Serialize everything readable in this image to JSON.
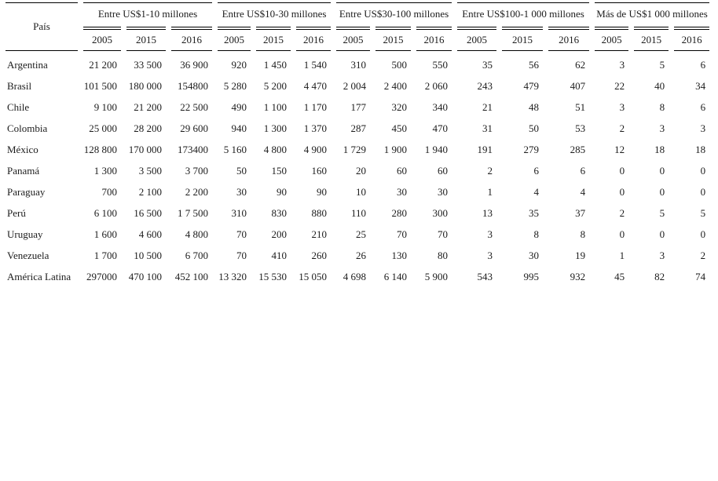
{
  "table": {
    "country_header": "País",
    "years": [
      "2005",
      "2015",
      "2016"
    ],
    "groups": [
      {
        "label": "Entre US$1-10 millones"
      },
      {
        "label": "Entre US$10-30 millones"
      },
      {
        "label": "Entre US$30-100 millones"
      },
      {
        "label": "Entre US$100-1 000 millones"
      },
      {
        "label": "Más de US$1 000 millones"
      }
    ],
    "rows": [
      {
        "country": "Argentina",
        "values": [
          "21 200",
          "33 500",
          "36 900",
          "920",
          "1 450",
          "1 540",
          "310",
          "500",
          "550",
          "35",
          "56",
          "62",
          "3",
          "5",
          "6"
        ]
      },
      {
        "country": "Brasil",
        "values": [
          "101 500",
          "180 000",
          "154800",
          "5 280",
          "5 200",
          "4 470",
          "2 004",
          "2 400",
          "2 060",
          "243",
          "479",
          "407",
          "22",
          "40",
          "34"
        ]
      },
      {
        "country": "Chile",
        "values": [
          "9 100",
          "21 200",
          "22 500",
          "490",
          "1 100",
          "1 170",
          "177",
          "320",
          "340",
          "21",
          "48",
          "51",
          "3",
          "8",
          "6"
        ]
      },
      {
        "country": "Colombia",
        "values": [
          "25 000",
          "28 200",
          "29 600",
          "940",
          "1 300",
          "1 370",
          "287",
          "450",
          "470",
          "31",
          "50",
          "53",
          "2",
          "3",
          "3"
        ]
      },
      {
        "country": "México",
        "values": [
          "128 800",
          "170 000",
          "173400",
          "5 160",
          "4 800",
          "4 900",
          "1 729",
          "1 900",
          "1 940",
          "191",
          "279",
          "285",
          "12",
          "18",
          "18"
        ]
      },
      {
        "country": "Panamá",
        "values": [
          "1 300",
          "3 500",
          "3 700",
          "50",
          "150",
          "160",
          "20",
          "60",
          "60",
          "2",
          "6",
          "6",
          "0",
          "0",
          "0"
        ]
      },
      {
        "country": "Paraguay",
        "values": [
          "700",
          "2 100",
          "2 200",
          "30",
          "90",
          "90",
          "10",
          "30",
          "30",
          "1",
          "4",
          "4",
          "0",
          "0",
          "0"
        ]
      },
      {
        "country": "Perú",
        "values": [
          "6 100",
          "16 500",
          "1 7 500",
          "310",
          "830",
          "880",
          "110",
          "280",
          "300",
          "13",
          "35",
          "37",
          "2",
          "5",
          "5"
        ]
      },
      {
        "country": "Uruguay",
        "values": [
          "1 600",
          "4 600",
          "4 800",
          "70",
          "200",
          "210",
          "25",
          "70",
          "70",
          "3",
          "8",
          "8",
          "0",
          "0",
          "0"
        ]
      },
      {
        "country": "Venezuela",
        "values": [
          "1 700",
          "10 500",
          "6 700",
          "70",
          "410",
          "260",
          "26",
          "130",
          "80",
          "3",
          "30",
          "19",
          "1",
          "3",
          "2"
        ]
      },
      {
        "country": "América Latina",
        "values": [
          "297000",
          "470 100",
          "452 100",
          "13 320",
          "15 530",
          "15 050",
          "4 698",
          "6 140",
          "5 900",
          "543",
          "995",
          "932",
          "45",
          "82",
          "74"
        ]
      }
    ]
  },
  "colors": {
    "text": "#1c1c1c",
    "rule": "#000000",
    "background": "#ffffff"
  }
}
